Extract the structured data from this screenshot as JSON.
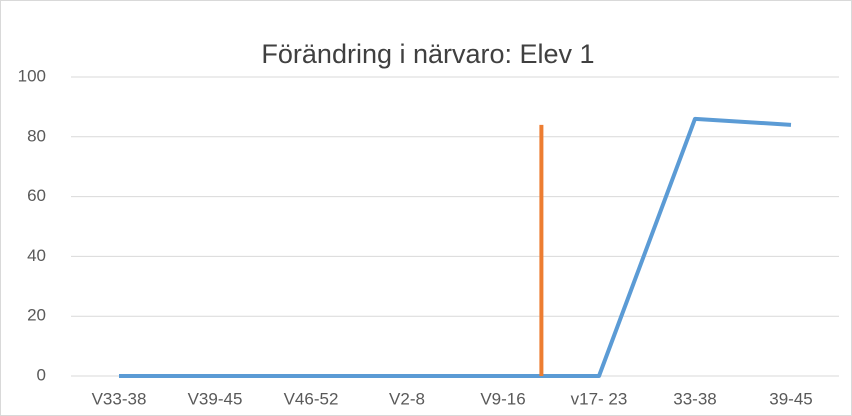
{
  "chart_data": {
    "type": "line",
    "title": "Förändring i närvaro: Elev 1",
    "categories": [
      "V33-38",
      "V39-45",
      "V46-52",
      "V2-8",
      "V9-16",
      "v17- 23",
      "33-38",
      "39-45"
    ],
    "series": [
      {
        "color": "#5b9bd5",
        "values": [
          0,
          0,
          0,
          0,
          0,
          0,
          86,
          84
        ]
      }
    ],
    "vertical_line": {
      "color": "#ed7d31",
      "x": 4.4,
      "values": [
        0,
        84
      ]
    },
    "ylim": [
      0,
      100
    ],
    "yticks": [
      0,
      20,
      40,
      60,
      80,
      100
    ],
    "grid": true
  }
}
